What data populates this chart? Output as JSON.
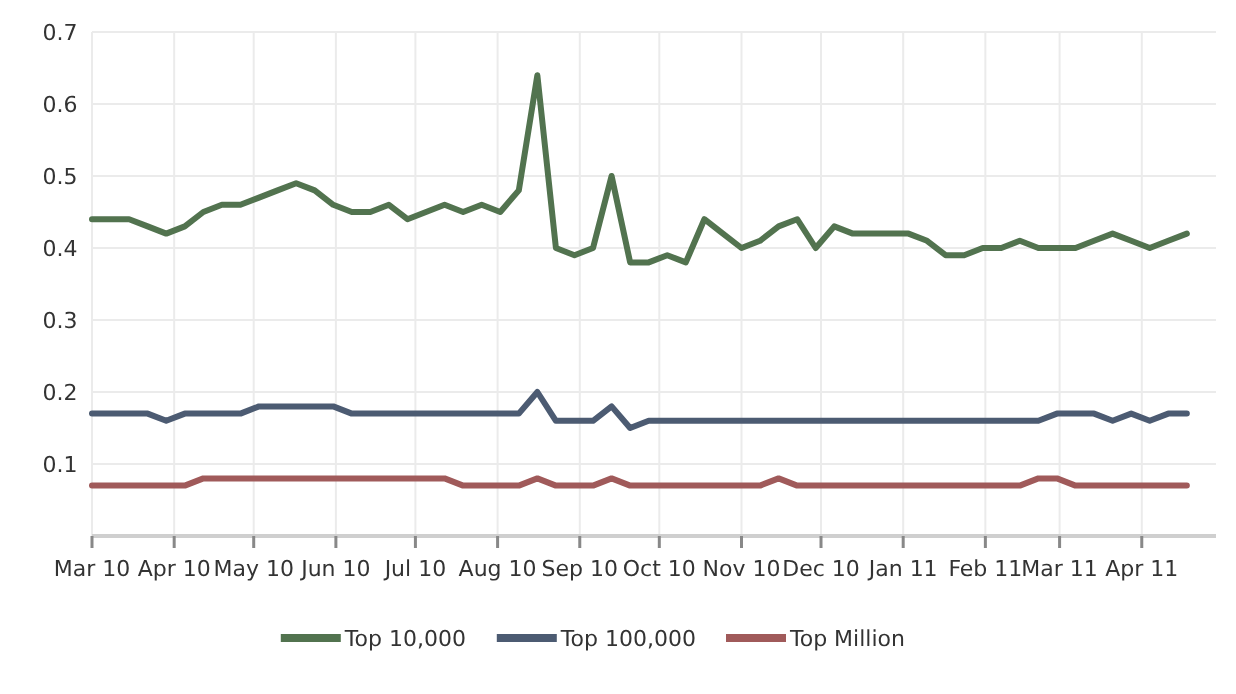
{
  "chart_data": {
    "type": "line",
    "x": [
      "2010-03-01",
      "2010-03-08",
      "2010-03-15",
      "2010-03-22",
      "2010-03-29",
      "2010-04-05",
      "2010-04-12",
      "2010-04-19",
      "2010-04-26",
      "2010-05-03",
      "2010-05-10",
      "2010-05-17",
      "2010-05-24",
      "2010-05-31",
      "2010-06-07",
      "2010-06-14",
      "2010-06-21",
      "2010-06-28",
      "2010-07-05",
      "2010-07-12",
      "2010-07-19",
      "2010-07-26",
      "2010-08-02",
      "2010-08-09",
      "2010-08-16",
      "2010-08-23",
      "2010-08-30",
      "2010-09-06",
      "2010-09-13",
      "2010-09-20",
      "2010-09-27",
      "2010-10-04",
      "2010-10-11",
      "2010-10-18",
      "2010-10-25",
      "2010-11-01",
      "2010-11-08",
      "2010-11-15",
      "2010-11-22",
      "2010-11-29",
      "2010-12-06",
      "2010-12-13",
      "2010-12-20",
      "2010-12-27",
      "2011-01-03",
      "2011-01-10",
      "2011-01-17",
      "2011-01-24",
      "2011-01-31",
      "2011-02-07",
      "2011-02-14",
      "2011-02-21",
      "2011-02-28",
      "2011-03-07",
      "2011-03-14",
      "2011-03-21",
      "2011-03-28",
      "2011-04-04",
      "2011-04-11",
      "2011-04-18"
    ],
    "series": [
      {
        "name": "Top 10,000",
        "color": "#52734f",
        "values": [
          0.44,
          0.44,
          0.44,
          0.43,
          0.42,
          0.43,
          0.45,
          0.46,
          0.46,
          0.47,
          0.48,
          0.49,
          0.48,
          0.46,
          0.45,
          0.45,
          0.46,
          0.44,
          0.45,
          0.46,
          0.45,
          0.46,
          0.45,
          0.48,
          0.64,
          0.4,
          0.39,
          0.4,
          0.5,
          0.38,
          0.38,
          0.39,
          0.38,
          0.44,
          0.42,
          0.4,
          0.41,
          0.43,
          0.44,
          0.4,
          0.43,
          0.42,
          0.42,
          0.42,
          0.42,
          0.41,
          0.39,
          0.39,
          0.4,
          0.4,
          0.41,
          0.4,
          0.4,
          0.4,
          0.41,
          0.42,
          0.41,
          0.4,
          0.41,
          0.42
        ]
      },
      {
        "name": "Top 100,000",
        "color": "#4c5b72",
        "values": [
          0.17,
          0.17,
          0.17,
          0.17,
          0.16,
          0.17,
          0.17,
          0.17,
          0.17,
          0.18,
          0.18,
          0.18,
          0.18,
          0.18,
          0.17,
          0.17,
          0.17,
          0.17,
          0.17,
          0.17,
          0.17,
          0.17,
          0.17,
          0.17,
          0.2,
          0.16,
          0.16,
          0.16,
          0.18,
          0.15,
          0.16,
          0.16,
          0.16,
          0.16,
          0.16,
          0.16,
          0.16,
          0.16,
          0.16,
          0.16,
          0.16,
          0.16,
          0.16,
          0.16,
          0.16,
          0.16,
          0.16,
          0.16,
          0.16,
          0.16,
          0.16,
          0.16,
          0.17,
          0.17,
          0.17,
          0.16,
          0.17,
          0.16,
          0.17,
          0.17
        ]
      },
      {
        "name": "Top Million",
        "color": "#a05a5a",
        "values": [
          0.07,
          0.07,
          0.07,
          0.07,
          0.07,
          0.07,
          0.08,
          0.08,
          0.08,
          0.08,
          0.08,
          0.08,
          0.08,
          0.08,
          0.08,
          0.08,
          0.08,
          0.08,
          0.08,
          0.08,
          0.07,
          0.07,
          0.07,
          0.07,
          0.08,
          0.07,
          0.07,
          0.07,
          0.08,
          0.07,
          0.07,
          0.07,
          0.07,
          0.07,
          0.07,
          0.07,
          0.07,
          0.08,
          0.07,
          0.07,
          0.07,
          0.07,
          0.07,
          0.07,
          0.07,
          0.07,
          0.07,
          0.07,
          0.07,
          0.07,
          0.07,
          0.08,
          0.08,
          0.07,
          0.07,
          0.07,
          0.07,
          0.07,
          0.07,
          0.07
        ]
      }
    ],
    "xlim": [
      "2010-03-01",
      "2011-04-29"
    ],
    "xticks": [
      {
        "value": "2010-03-01",
        "label": "Mar 10"
      },
      {
        "value": "2010-04-01",
        "label": "Apr 10"
      },
      {
        "value": "2010-05-01",
        "label": "May 10"
      },
      {
        "value": "2010-06-01",
        "label": "Jun 10"
      },
      {
        "value": "2010-07-01",
        "label": "Jul 10"
      },
      {
        "value": "2010-08-01",
        "label": "Aug 10"
      },
      {
        "value": "2010-09-01",
        "label": "Sep 10"
      },
      {
        "value": "2010-10-01",
        "label": "Oct 10"
      },
      {
        "value": "2010-11-01",
        "label": "Nov 10"
      },
      {
        "value": "2010-12-01",
        "label": "Dec 10"
      },
      {
        "value": "2011-01-01",
        "label": "Jan 11"
      },
      {
        "value": "2011-02-01",
        "label": "Feb 11"
      },
      {
        "value": "2011-03-01",
        "label": "Mar 11"
      },
      {
        "value": "2011-04-01",
        "label": "Apr 11"
      }
    ],
    "ylim": [
      0,
      0.7
    ],
    "yticks": [
      0.1,
      0.2,
      0.3,
      0.4,
      0.5,
      0.6,
      0.7
    ],
    "grid": true,
    "legend": "bottom",
    "marker": "none",
    "line_style": "solid"
  }
}
